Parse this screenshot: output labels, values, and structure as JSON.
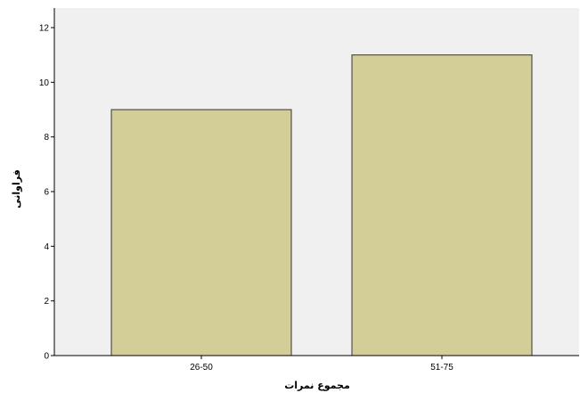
{
  "chart_data": {
    "type": "bar",
    "categories": [
      "26-50",
      "51-75"
    ],
    "values": [
      9,
      11
    ],
    "title": "",
    "xlabel": "مجموع نمرات",
    "ylabel": "فراوانی",
    "ylim": [
      0,
      12
    ],
    "yticks": [
      0,
      2,
      4,
      6,
      8,
      10,
      12
    ],
    "grid": false,
    "legend": "none",
    "colors": {
      "bar_fill": "#D3CE98",
      "bar_stroke": "#333333",
      "plot_background": "#F0F0F0",
      "axis": "#000000"
    }
  }
}
